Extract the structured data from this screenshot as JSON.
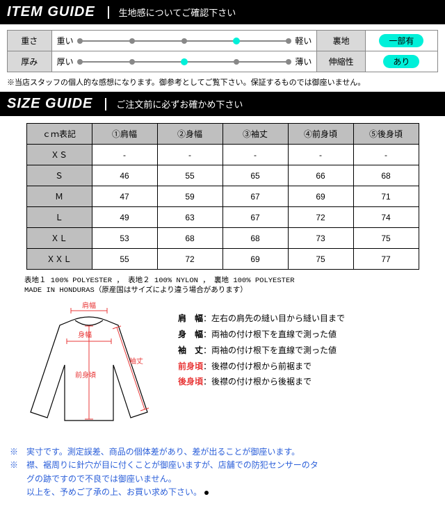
{
  "banners": {
    "item": {
      "title": "ITEM GUIDE",
      "sub": "生地感についてご確認下さい"
    },
    "size": {
      "title": "SIZE GUIDE",
      "sub": "ご注文前に必ずお確かめ下さい"
    }
  },
  "itemGuide": {
    "rows": [
      {
        "label": "重さ",
        "left": "重い",
        "right": "軽い",
        "activeIndex": 3,
        "propLabel": "裏地",
        "propVal": "一部有"
      },
      {
        "label": "厚み",
        "left": "厚い",
        "right": "薄い",
        "activeIndex": 2,
        "propLabel": "伸縮性",
        "propVal": "あり"
      }
    ],
    "tickCount": 5,
    "note": "※当店スタッフの個人的な感想になります。御参考としてご覧下さい。保証するものでは御座いません。"
  },
  "sizeGuide": {
    "headers": [
      "ｃｍ表記",
      "①肩幅",
      "②身幅",
      "③袖丈",
      "④前身頃",
      "⑤後身頃"
    ],
    "rows": [
      {
        "h": "ＸＳ",
        "c": [
          "-",
          "-",
          "-",
          "-",
          "-"
        ]
      },
      {
        "h": "Ｓ",
        "c": [
          "46",
          "55",
          "65",
          "66",
          "68"
        ]
      },
      {
        "h": "Ｍ",
        "c": [
          "47",
          "59",
          "67",
          "69",
          "71"
        ]
      },
      {
        "h": "Ｌ",
        "c": [
          "49",
          "63",
          "67",
          "72",
          "74"
        ]
      },
      {
        "h": "ＸＬ",
        "c": [
          "53",
          "68",
          "68",
          "73",
          "75"
        ]
      },
      {
        "h": "ＸＸＬ",
        "c": [
          "55",
          "72",
          "69",
          "75",
          "77"
        ]
      }
    ],
    "material": "表地１ 100% POLYESTER ， 表地２ 100% NYLON ， 裏地 100% POLYESTER\nMADE IN HONDURAS（原産国はサイズにより違う場合があります）"
  },
  "legend": [
    {
      "k": "肩　幅",
      "d": "：左右の肩先の縫い目から縫い目まで"
    },
    {
      "k": "身　幅",
      "d": "：両袖の付け根下を直線で測った値"
    },
    {
      "k": "袖　丈",
      "d": "：両袖の付け根下を直線で測った値"
    },
    {
      "k": "前身頃",
      "d": "：後襟の付け根から前裾まで"
    },
    {
      "k": "後身頃",
      "d": "：後襟の付け根から後裾まで"
    }
  ],
  "diagLabels": {
    "shoulder": "肩幅",
    "chest": "身幅",
    "sleeve": "袖丈",
    "front": "前身頃"
  },
  "footnotes": [
    "※　実寸です。測定誤差、商品の個体差があり、差が出ることが御座います。",
    "※　襟、裾周りに針穴が目に付くことが御座いますが、店舗での防犯センサーのタ",
    "　　グの跡ですので不良では御座いません。",
    "　　以上を、予めご了承の上、お買い求め下さい。"
  ],
  "colors": {
    "accent": "#00f0d9",
    "red": "#e83838",
    "blue": "#2b5fd9"
  }
}
